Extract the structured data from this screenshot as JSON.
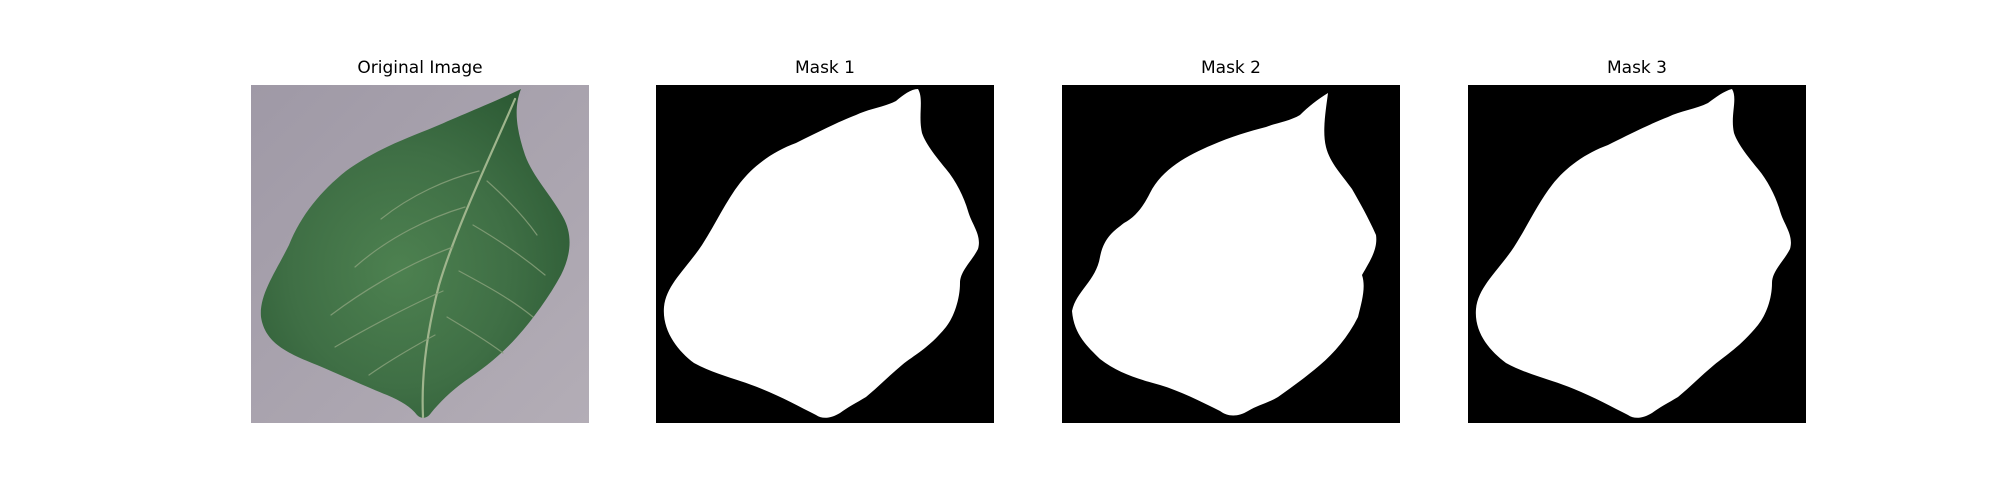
{
  "panels": [
    {
      "title": "Original Image",
      "kind": "photo"
    },
    {
      "title": "Mask 1",
      "kind": "mask"
    },
    {
      "title": "Mask 2",
      "kind": "mask"
    },
    {
      "title": "Mask 3",
      "kind": "mask"
    }
  ],
  "colors": {
    "background_surface": "#a9a2ad",
    "leaf": "#3f6f45",
    "leaf_vein": "#9fb58d",
    "mask_foreground": "#ffffff",
    "mask_background": "#000000"
  }
}
